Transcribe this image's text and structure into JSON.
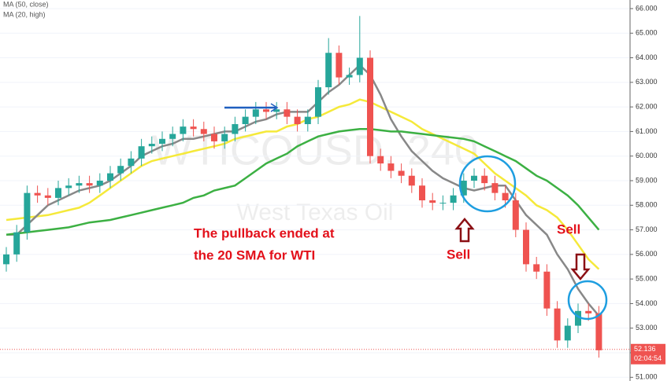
{
  "chart_data": {
    "type": "candlestick",
    "watermark": [
      "WTICOUSD, 240",
      "West Texas Oil"
    ],
    "open": [
      55.6,
      56.0,
      56.9,
      58.5,
      58.4,
      58.3,
      58.7,
      58.8,
      58.9,
      58.8,
      59.0,
      59.3,
      59.6,
      59.9,
      60.4,
      60.5,
      60.7,
      60.9,
      61.2,
      61.1,
      60.9,
      60.6,
      60.9,
      61.3,
      61.6,
      61.9,
      61.8,
      61.9,
      61.6,
      61.3,
      61.6,
      62.8,
      64.2,
      63.2,
      63.3,
      64.0,
      60.0,
      59.7,
      59.4,
      59.2,
      58.8,
      58.2,
      58.1,
      58.1,
      58.4,
      59.0,
      59.2,
      58.9,
      58.5,
      58.2,
      57.0,
      55.6,
      55.3,
      53.8,
      52.5,
      53.1,
      53.7,
      53.6
    ],
    "high": [
      56.3,
      57.2,
      58.8,
      58.8,
      58.7,
      59.0,
      59.1,
      59.2,
      59.2,
      59.3,
      59.6,
      59.9,
      60.2,
      60.7,
      60.8,
      61.0,
      61.2,
      61.5,
      61.5,
      61.4,
      61.2,
      61.2,
      61.6,
      61.9,
      62.2,
      62.2,
      62.2,
      62.2,
      61.9,
      61.9,
      63.1,
      64.8,
      64.5,
      63.6,
      65.7,
      64.3,
      60.3,
      60.0,
      59.7,
      59.5,
      59.1,
      58.5,
      58.4,
      58.7,
      59.3,
      59.5,
      59.5,
      59.2,
      58.8,
      58.5,
      57.3,
      55.9,
      55.6,
      54.1,
      53.4,
      54.0,
      54.0,
      53.9
    ],
    "low": [
      55.3,
      55.7,
      56.6,
      58.1,
      58.0,
      58.0,
      58.4,
      58.5,
      58.5,
      58.5,
      58.7,
      59.0,
      59.3,
      59.6,
      60.1,
      60.2,
      60.4,
      60.6,
      60.8,
      60.6,
      60.3,
      60.3,
      60.6,
      61.0,
      61.3,
      61.5,
      61.5,
      61.3,
      61.0,
      61.0,
      61.3,
      62.5,
      62.9,
      62.9,
      63.0,
      59.7,
      59.4,
      59.1,
      58.9,
      58.5,
      57.9,
      57.8,
      57.8,
      57.8,
      58.1,
      58.7,
      58.6,
      58.2,
      57.9,
      56.7,
      55.3,
      55.0,
      53.5,
      52.2,
      52.2,
      52.8,
      53.3,
      51.8
    ],
    "close": [
      56.0,
      56.9,
      58.5,
      58.4,
      58.3,
      58.7,
      58.8,
      58.9,
      58.8,
      59.0,
      59.3,
      59.6,
      59.9,
      60.4,
      60.5,
      60.7,
      60.9,
      61.2,
      61.1,
      60.9,
      60.6,
      60.9,
      61.3,
      61.6,
      61.9,
      61.8,
      61.9,
      61.6,
      61.3,
      61.6,
      62.8,
      64.2,
      63.2,
      63.3,
      64.0,
      60.0,
      59.7,
      59.4,
      59.2,
      58.8,
      58.2,
      58.1,
      58.1,
      58.4,
      59.0,
      59.2,
      58.9,
      58.5,
      58.2,
      57.0,
      55.6,
      55.3,
      53.8,
      52.5,
      53.1,
      53.7,
      53.6,
      52.1
    ],
    "up_color": "#26a69a",
    "down_color": "#ef5350",
    "series": [
      {
        "name": "MA (50, close)",
        "color": "#f5e93a",
        "values": [
          57.4,
          57.45,
          57.5,
          57.55,
          57.6,
          57.7,
          57.8,
          57.9,
          58.1,
          58.4,
          58.7,
          59.0,
          59.3,
          59.6,
          59.8,
          59.9,
          60.0,
          60.1,
          60.2,
          60.3,
          60.4,
          60.5,
          60.7,
          60.8,
          60.9,
          61.0,
          61.0,
          61.2,
          61.3,
          61.5,
          61.6,
          61.8,
          62.0,
          62.1,
          62.3,
          62.2,
          62.0,
          61.8,
          61.6,
          61.4,
          61.1,
          60.9,
          60.7,
          60.5,
          60.3,
          60.1,
          59.7,
          59.3,
          59.0,
          58.7,
          58.4,
          58.0,
          57.8,
          57.5,
          57.0,
          56.4,
          55.8,
          55.4
        ]
      },
      {
        "name": "MA (20, high)",
        "color": "#888888",
        "values": [
          56.8,
          56.8,
          57.2,
          57.6,
          58.0,
          58.2,
          58.4,
          58.6,
          58.7,
          58.8,
          59.0,
          59.3,
          59.6,
          60.0,
          60.2,
          60.4,
          60.5,
          60.7,
          60.7,
          60.8,
          60.9,
          61.0,
          61.0,
          61.2,
          61.4,
          61.5,
          61.7,
          61.8,
          61.8,
          61.8,
          62.2,
          62.6,
          62.9,
          63.3,
          63.7,
          63.3,
          62.5,
          61.5,
          60.8,
          60.2,
          59.8,
          59.4,
          59.1,
          58.9,
          58.7,
          58.6,
          58.7,
          58.8,
          58.8,
          58.2,
          57.6,
          57.2,
          56.8,
          56.0,
          55.4,
          54.6,
          54.0,
          53.5
        ]
      },
      {
        "color": "#3cb043",
        "values": [
          56.8,
          56.85,
          56.9,
          56.95,
          57.0,
          57.05,
          57.1,
          57.2,
          57.3,
          57.35,
          57.4,
          57.5,
          57.6,
          57.7,
          57.8,
          57.9,
          58.0,
          58.1,
          58.3,
          58.4,
          58.6,
          58.7,
          58.8,
          59.1,
          59.4,
          59.7,
          59.9,
          60.1,
          60.4,
          60.6,
          60.8,
          60.9,
          61.0,
          61.05,
          61.1,
          61.1,
          61.05,
          61.0,
          61.0,
          60.95,
          60.9,
          60.85,
          60.8,
          60.75,
          60.7,
          60.6,
          60.4,
          60.2,
          60.0,
          59.8,
          59.5,
          59.2,
          59.0,
          58.7,
          58.4,
          58.0,
          57.5,
          57.0
        ]
      }
    ],
    "ylim": [
      50.85,
      66.35
    ],
    "yticks": [
      {
        "value": 51,
        "label": "51.000"
      },
      {
        "value": 52,
        "label": "52.000"
      },
      {
        "value": 53,
        "label": "53.000"
      },
      {
        "value": 54,
        "label": "54.000"
      },
      {
        "value": 55,
        "label": "55.000"
      },
      {
        "value": 56,
        "label": "56.000"
      },
      {
        "value": 57,
        "label": "57.000"
      },
      {
        "value": 58,
        "label": "58.000"
      },
      {
        "value": 59,
        "label": "59.000"
      },
      {
        "value": 60,
        "label": "60.000"
      },
      {
        "value": 61,
        "label": "61.000"
      },
      {
        "value": 62,
        "label": "62.000"
      },
      {
        "value": 63,
        "label": "63.000"
      },
      {
        "value": 64,
        "label": "64.000"
      },
      {
        "value": 65,
        "label": "65.000"
      },
      {
        "value": 66,
        "label": "66.000"
      }
    ],
    "last_price": {
      "value": 52.136,
      "label": "52.136"
    },
    "countdown": "02:04:54",
    "annotations": [
      "The pullback ended at",
      "the 20 SMA for WTI",
      "Sell",
      "Sell"
    ]
  }
}
